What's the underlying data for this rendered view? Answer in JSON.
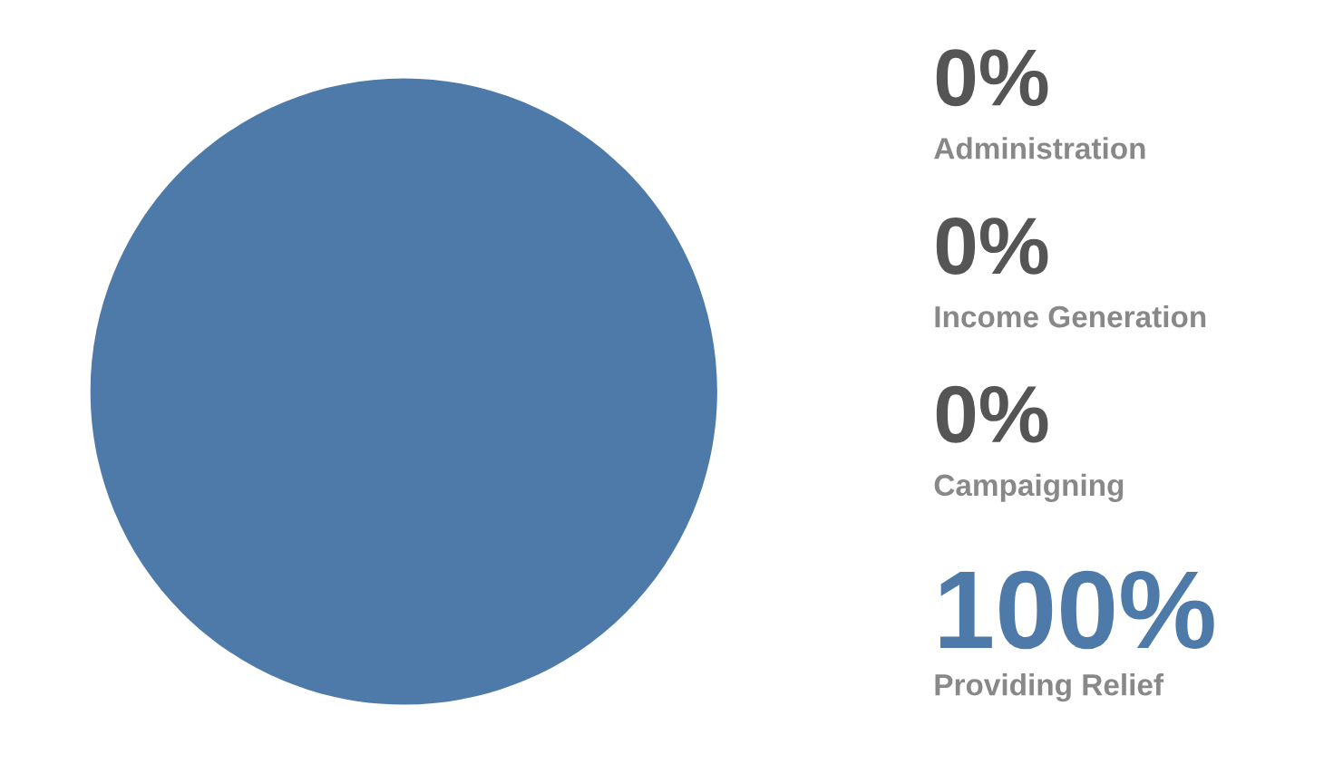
{
  "chart_data": {
    "type": "pie",
    "categories": [
      "Administration",
      "Income Generation",
      "Campaigning",
      "Providing Relief"
    ],
    "values": [
      0,
      0,
      0,
      100
    ],
    "value_labels": [
      "0%",
      "0%",
      "0%",
      "100%"
    ],
    "colors": [
      "#555555",
      "#555555",
      "#555555",
      "#4d7aa8"
    ]
  }
}
